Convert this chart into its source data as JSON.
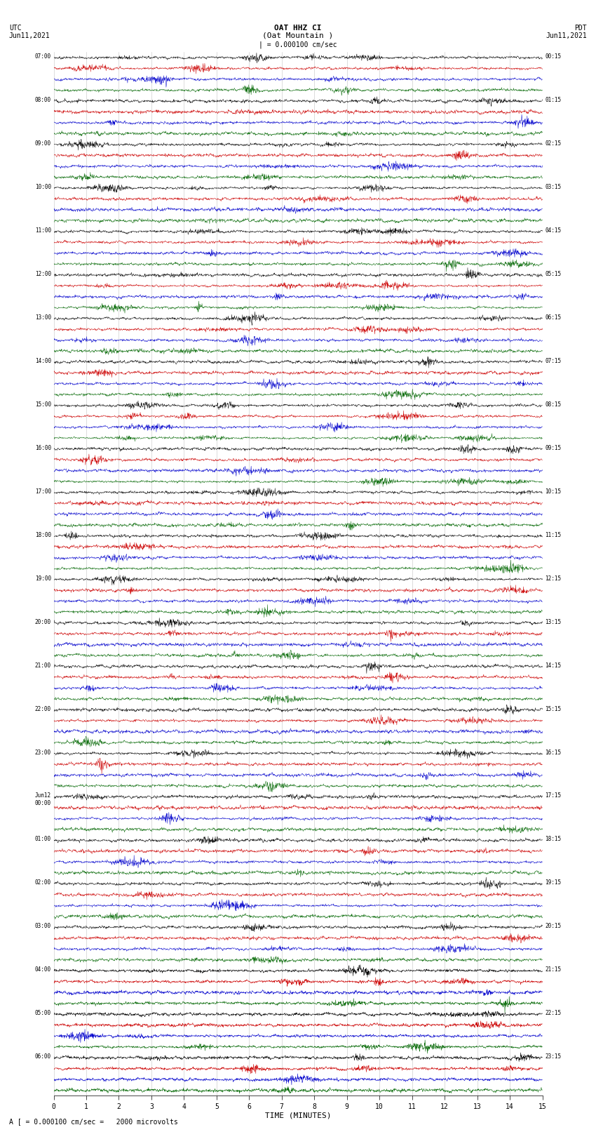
{
  "title_line1": "OAT HHZ CI",
  "title_line2": "(Oat Mountain )",
  "scale_label": "| = 0.000100 cm/sec",
  "footnote": "A [ = 0.000100 cm/sec =   2000 microvolts",
  "xlabel": "TIME (MINUTES)",
  "left_header_line1": "UTC",
  "left_header_line2": "Jun11,2021",
  "right_header_line1": "PDT",
  "right_header_line2": "Jun11,2021",
  "left_times": [
    "07:00",
    "08:00",
    "09:00",
    "10:00",
    "11:00",
    "12:00",
    "13:00",
    "14:00",
    "15:00",
    "16:00",
    "17:00",
    "18:00",
    "19:00",
    "20:00",
    "21:00",
    "22:00",
    "23:00",
    "Jun12\n00:00",
    "01:00",
    "02:00",
    "03:00",
    "04:00",
    "05:00",
    "06:00"
  ],
  "right_times": [
    "00:15",
    "01:15",
    "02:15",
    "03:15",
    "04:15",
    "05:15",
    "06:15",
    "07:15",
    "08:15",
    "09:15",
    "10:15",
    "11:15",
    "12:15",
    "13:15",
    "14:15",
    "15:15",
    "16:15",
    "17:15",
    "18:15",
    "19:15",
    "20:15",
    "21:15",
    "22:15",
    "23:15"
  ],
  "n_rows": 24,
  "traces_per_row": 4,
  "x_min": 0,
  "x_max": 15,
  "fig_width": 8.5,
  "fig_height": 16.13,
  "background_color": "white",
  "trace_color_0": "#000000",
  "trace_color_1": "#cc0000",
  "trace_color_2": "#0000cc",
  "trace_color_3": "#006600",
  "grid_color": "#aaaaaa",
  "large_event_rows": [
    21,
    22,
    23
  ],
  "large_event_scales": [
    8.0,
    4.0,
    3.0
  ]
}
